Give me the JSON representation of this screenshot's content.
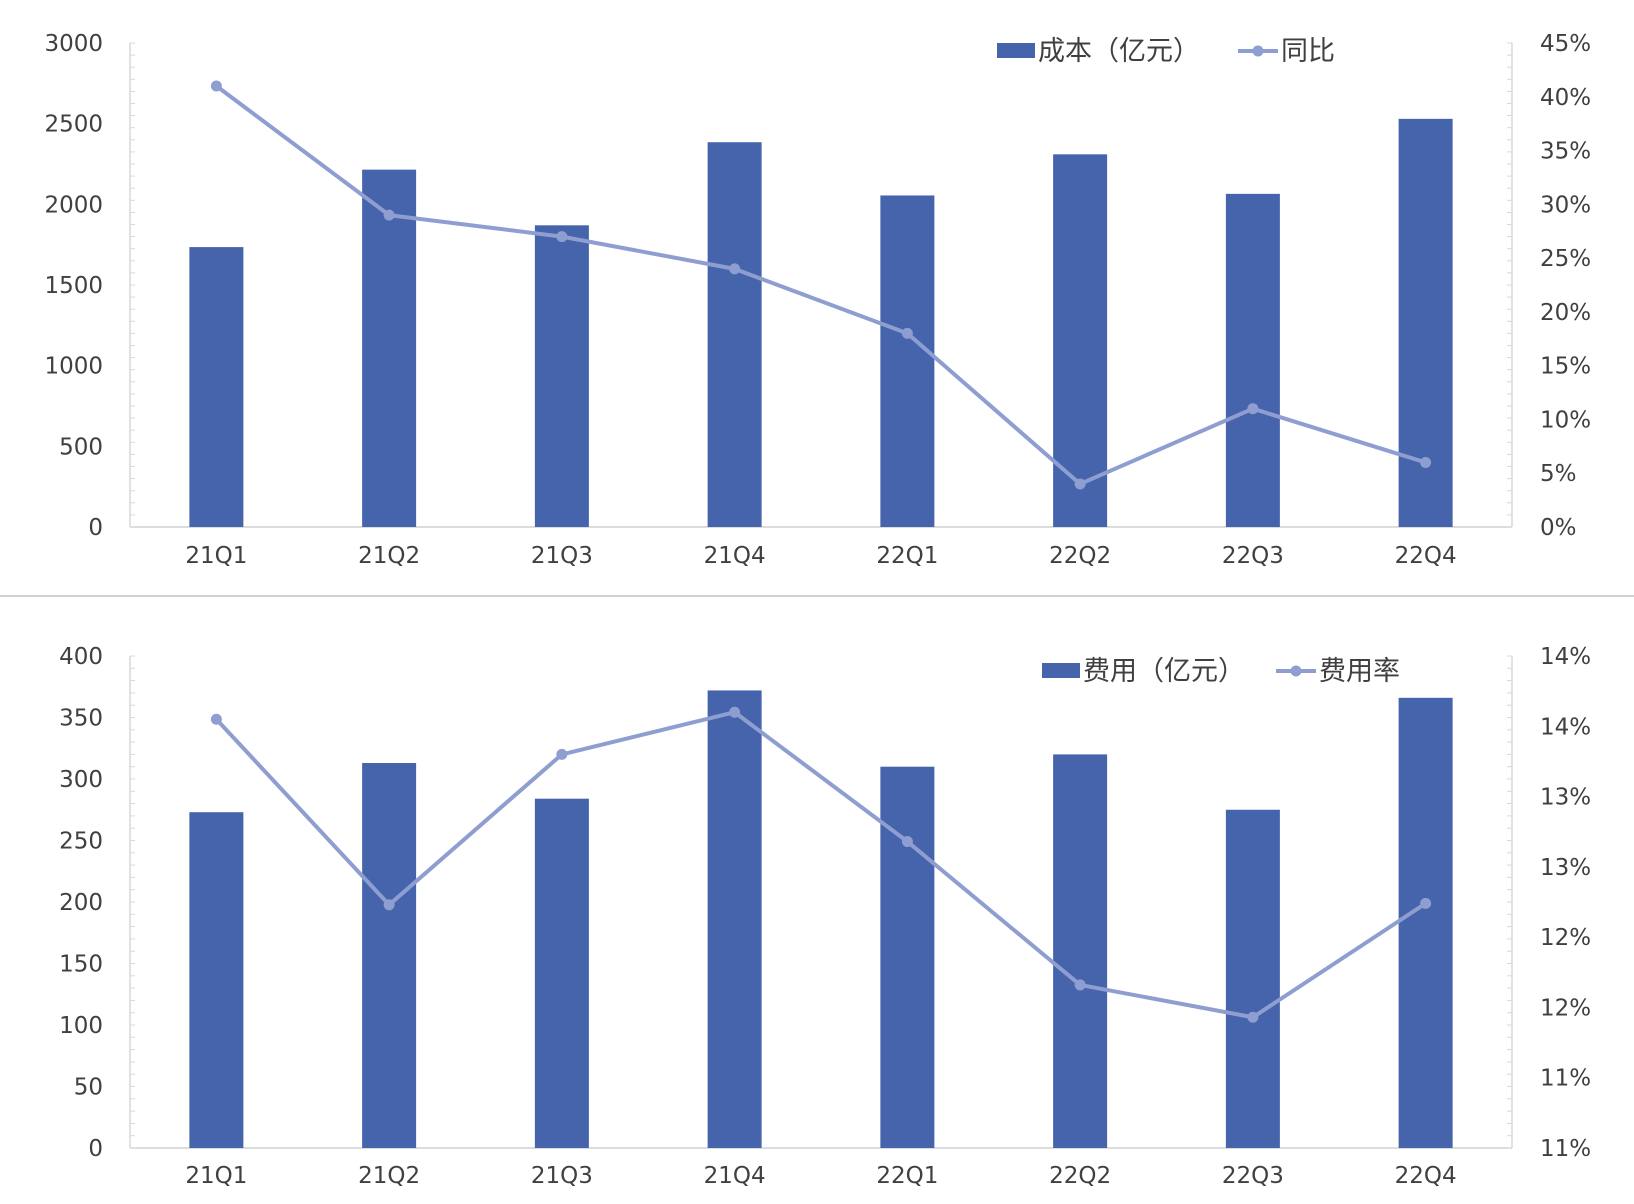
{
  "chart_data": [
    {
      "type": "bar",
      "categories": [
        "21Q1",
        "21Q2",
        "21Q3",
        "21Q4",
        "22Q1",
        "22Q2",
        "22Q3",
        "22Q4"
      ],
      "series": [
        {
          "name": "成本（亿元）",
          "type": "bar",
          "axis": "left",
          "color": "#4664AB",
          "values": [
            1735,
            2215,
            1870,
            2385,
            2055,
            2310,
            2065,
            2530
          ]
        },
        {
          "name": "同比",
          "type": "line",
          "axis": "right",
          "color": "#8E9ED0",
          "values": [
            0.41,
            0.29,
            0.27,
            0.24,
            0.18,
            0.04,
            0.11,
            0.06
          ]
        }
      ],
      "y_left": {
        "min": 0,
        "max": 3000,
        "ticks": [
          0,
          500,
          1000,
          1500,
          2000,
          2500,
          3000
        ],
        "tick_labels": [
          "0",
          "500",
          "1000",
          "1500",
          "2000",
          "2500",
          "3000"
        ]
      },
      "y_right": {
        "min": 0,
        "max": 0.45,
        "ticks": [
          0,
          0.05,
          0.1,
          0.15,
          0.2,
          0.25,
          0.3,
          0.35,
          0.4,
          0.45
        ],
        "tick_labels": [
          "0%",
          "5%",
          "10%",
          "15%",
          "20%",
          "25%",
          "30%",
          "35%",
          "40%",
          "45%"
        ]
      },
      "legend_position": "top-right",
      "grid": false
    },
    {
      "type": "bar",
      "categories": [
        "21Q1",
        "21Q2",
        "21Q3",
        "21Q4",
        "22Q1",
        "22Q2",
        "22Q3",
        "22Q4"
      ],
      "series": [
        {
          "name": "费用（亿元）",
          "type": "bar",
          "axis": "left",
          "color": "#4664AB",
          "values": [
            273,
            313,
            284,
            372,
            310,
            320,
            275,
            366
          ]
        },
        {
          "name": "费用率",
          "type": "line",
          "axis": "right",
          "color": "#8E9ED0",
          "values": [
            0.1405,
            0.1273,
            0.138,
            0.141,
            0.1318,
            0.1216,
            0.1193,
            0.1274
          ]
        }
      ],
      "y_left": {
        "min": 0,
        "max": 400,
        "ticks": [
          0,
          50,
          100,
          150,
          200,
          250,
          300,
          350,
          400
        ],
        "tick_labels": [
          "0",
          "50",
          "100",
          "150",
          "200",
          "250",
          "300",
          "350",
          "400"
        ]
      },
      "y_right": {
        "min": 0.11,
        "max": 0.145,
        "ticks": [
          0.11,
          0.115,
          0.12,
          0.125,
          0.13,
          0.135,
          0.14,
          0.145
        ],
        "tick_labels": [
          "11%",
          "11%",
          "12%",
          "12%",
          "13%",
          "13%",
          "14%",
          "14%"
        ]
      },
      "legend_position": "top-right",
      "grid": false
    }
  ]
}
